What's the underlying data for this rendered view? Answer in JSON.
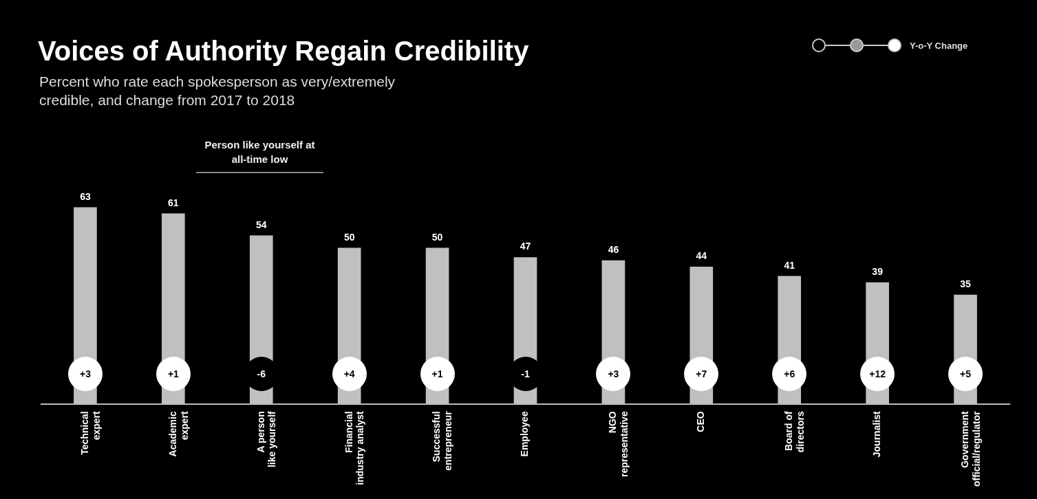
{
  "chart_data": {
    "type": "bar",
    "title": "Voices of Authority Regain Credibility",
    "subtitle": "Percent who rate each spokesperson as very/extremely credible, and change from 2017 to 2018",
    "categories": [
      "Technical expert",
      "Academic expert",
      "A person like yourself",
      "Financial industry analyst",
      "Successful entrepreneur",
      "Employee",
      "NGO representative",
      "CEO",
      "Board of directors",
      "Journalist",
      "Government official/regulator"
    ],
    "values": [
      63,
      61,
      54,
      50,
      50,
      47,
      46,
      44,
      41,
      39,
      35
    ],
    "color": "#c0c0c0",
    "data_labels": true,
    "legend": false,
    "legend_title": "Y-o-Y Change",
    "annotations": [
      "Person like yourself at all-time low",
      "+3",
      "+1",
      "-6",
      "+4",
      "+1",
      "-1",
      "+3",
      "+7",
      "+6",
      "+12",
      "+5"
    ]
  }
}
